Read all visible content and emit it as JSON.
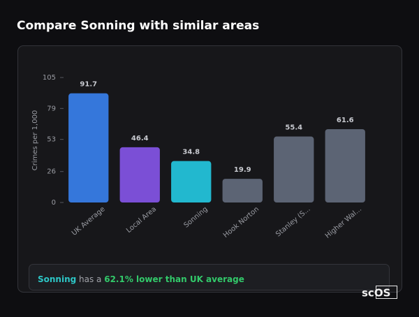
{
  "chart_data": {
    "type": "bar",
    "title": "Compare Sonning with similar areas",
    "y_label": "Crimes per 1,000",
    "categories": [
      "UK Average",
      "Local Area",
      "Sonning",
      "Hook Norton",
      "Stanley (S...",
      "Higher Wal..."
    ],
    "values": [
      91.7,
      46.4,
      34.8,
      19.9,
      55.4,
      61.6
    ],
    "colors": [
      "#3577db",
      "#7b4fd6",
      "#22b8cf",
      "#5c6474",
      "#5c6474",
      "#5c6474"
    ],
    "ylim": [
      0,
      105
    ],
    "yticks": [
      0,
      26,
      53,
      79,
      105
    ],
    "grid": false
  },
  "summary": {
    "parts": [
      "Sonning",
      " has a ",
      "62.1% lower than UK average"
    ]
  },
  "logo": "scOS"
}
